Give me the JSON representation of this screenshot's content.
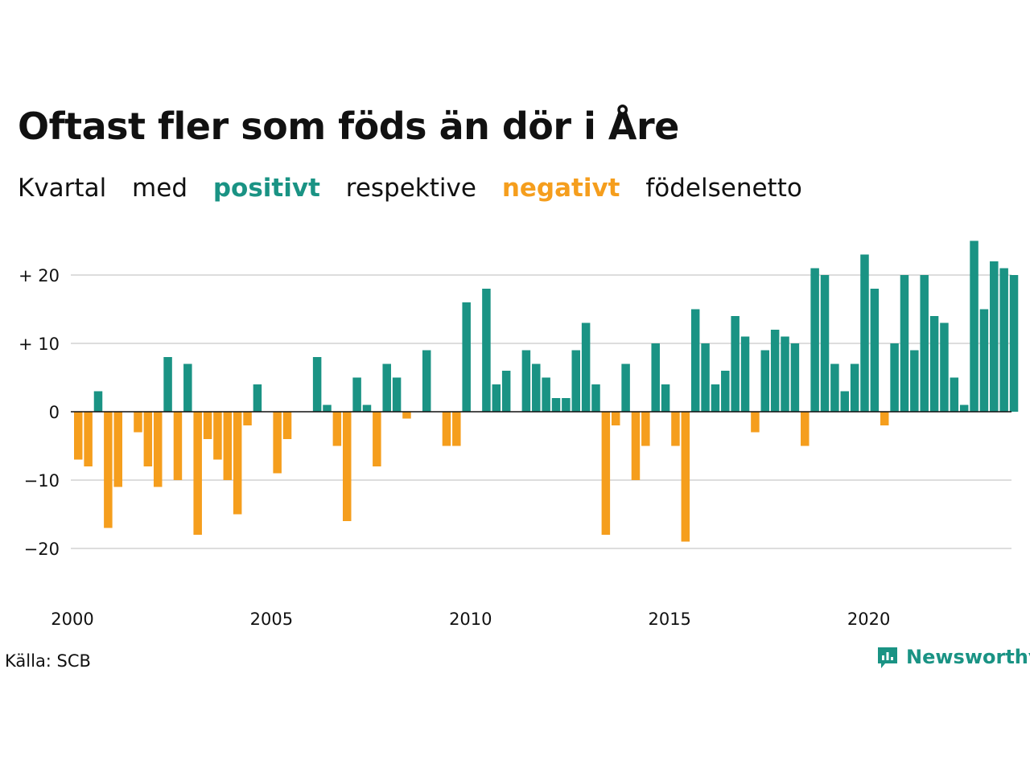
{
  "title": "Oftast fler som föds än dör i Åre",
  "subtitle": {
    "part1": "Kvartal",
    "part2": "med",
    "positive_word": "positivt",
    "part3": "respektive",
    "negative_word": "negativt",
    "part4": "födelsenetto"
  },
  "source": "Källa: SCB",
  "brand": "Newsworthy",
  "colors": {
    "positive": "#1a9384",
    "negative": "#f59e1d",
    "grid": "#dddddd",
    "zero": "#111111"
  },
  "chart_data": {
    "type": "bar",
    "x_start": "2000 Q1",
    "x_end": "2023 Q3",
    "ylim": [
      -27,
      27
    ],
    "y_ticks": [
      20,
      10,
      0,
      -10,
      -20
    ],
    "y_tick_labels": [
      "+ 20",
      "+ 10",
      "0",
      "−10",
      "−20"
    ],
    "x_tick_labels": [
      "2000",
      "2005",
      "2010",
      "2015",
      "2020"
    ],
    "x_tick_years": [
      2000,
      2005,
      2010,
      2015,
      2020
    ],
    "values": [
      -7,
      -8,
      3,
      -17,
      -11,
      0,
      -3,
      -8,
      -11,
      8,
      -10,
      7,
      -18,
      -4,
      -7,
      -10,
      -15,
      -2,
      4,
      0,
      -9,
      -4,
      0,
      0,
      8,
      1,
      -5,
      -16,
      5,
      1,
      -8,
      7,
      5,
      -1,
      0,
      9,
      0,
      -5,
      -5,
      16,
      0,
      18,
      4,
      6,
      0,
      9,
      7,
      5,
      2,
      2,
      9,
      13,
      4,
      -18,
      -2,
      7,
      -10,
      -5,
      10,
      4,
      -5,
      -19,
      15,
      10,
      4,
      6,
      14,
      11,
      -3,
      9,
      12,
      11,
      10,
      -5,
      21,
      20,
      7,
      3,
      7,
      23,
      18,
      -2,
      10,
      20,
      9,
      20,
      14,
      13,
      5,
      1,
      25,
      15,
      22,
      21,
      20
    ]
  }
}
